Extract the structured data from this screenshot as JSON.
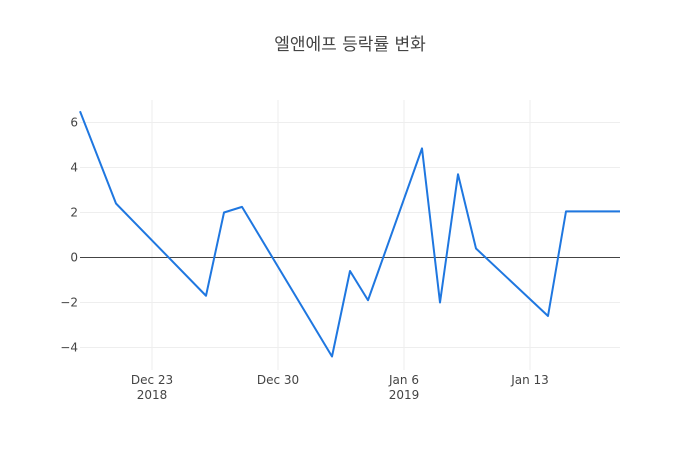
{
  "chart_data": {
    "type": "line",
    "title": "엘앤에프 등락률 변화",
    "xlabel": "",
    "ylabel": "",
    "x_range": [
      "2018-12-19",
      "2019-01-18"
    ],
    "ylim": [
      -5,
      7
    ],
    "grid": true,
    "zero_line": true,
    "line_color": "#1f77e0",
    "x_ticks": [
      {
        "date": "2018-12-23",
        "label": "Dec 23",
        "sublabel": "2018"
      },
      {
        "date": "2018-12-30",
        "label": "Dec 30",
        "sublabel": ""
      },
      {
        "date": "2019-01-06",
        "label": "Jan 6",
        "sublabel": "2019"
      },
      {
        "date": "2019-01-13",
        "label": "Jan 13",
        "sublabel": ""
      }
    ],
    "y_ticks": [
      {
        "value": 6,
        "label": "6"
      },
      {
        "value": 4,
        "label": "4"
      },
      {
        "value": 2,
        "label": "2"
      },
      {
        "value": 0,
        "label": "0"
      },
      {
        "value": -2,
        "label": "−2"
      },
      {
        "value": -4,
        "label": "−4"
      }
    ],
    "series": [
      {
        "x": [
          "2018-12-19",
          "2018-12-21",
          "2018-12-26",
          "2018-12-27",
          "2018-12-28",
          "2019-01-02",
          "2019-01-03",
          "2019-01-04",
          "2019-01-07",
          "2019-01-08",
          "2019-01-09",
          "2019-01-10",
          "2019-01-14",
          "2019-01-15",
          "2019-01-18"
        ],
        "values": [
          6.5,
          2.4,
          -1.7,
          2.0,
          2.25,
          -4.4,
          -0.6,
          -1.9,
          4.85,
          -2.0,
          3.7,
          0.4,
          -2.6,
          2.05,
          2.05
        ]
      }
    ]
  }
}
